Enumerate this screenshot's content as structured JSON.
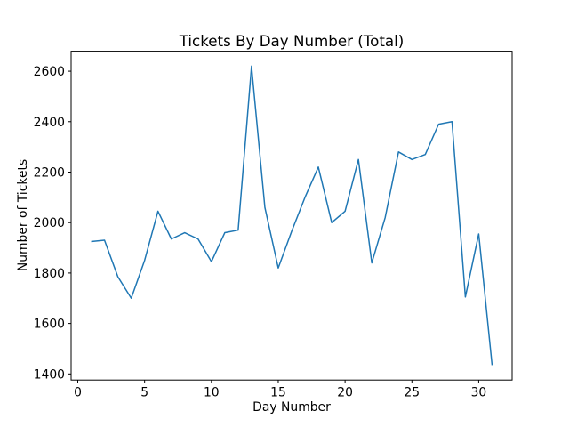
{
  "chart_data": {
    "type": "line",
    "title": "Tickets By Day Number (Total)",
    "xlabel": "Day Number",
    "ylabel": "Number of Tickets",
    "x": [
      1,
      2,
      3,
      4,
      5,
      6,
      7,
      8,
      9,
      10,
      11,
      12,
      13,
      14,
      15,
      16,
      17,
      18,
      19,
      20,
      21,
      22,
      23,
      24,
      25,
      26,
      27,
      28,
      29,
      30,
      31
    ],
    "values": [
      1925,
      1930,
      1785,
      1700,
      1850,
      2045,
      1935,
      1960,
      1935,
      1845,
      1960,
      1970,
      2620,
      2060,
      1820,
      1965,
      2100,
      2220,
      2000,
      2045,
      2250,
      1840,
      2020,
      2280,
      2250,
      2270,
      2390,
      2400,
      1705,
      1955,
      1435
    ],
    "xticks": [
      0,
      5,
      10,
      15,
      20,
      25,
      30
    ],
    "yticks": [
      1400,
      1600,
      1800,
      2000,
      2200,
      2400,
      2600
    ],
    "xlim": [
      -0.5,
      32.5
    ],
    "ylim": [
      1375.75,
      2679.25
    ],
    "line_color": "#1f77b4",
    "axis_color": "#000000",
    "grid": false,
    "legend_position": "none"
  }
}
